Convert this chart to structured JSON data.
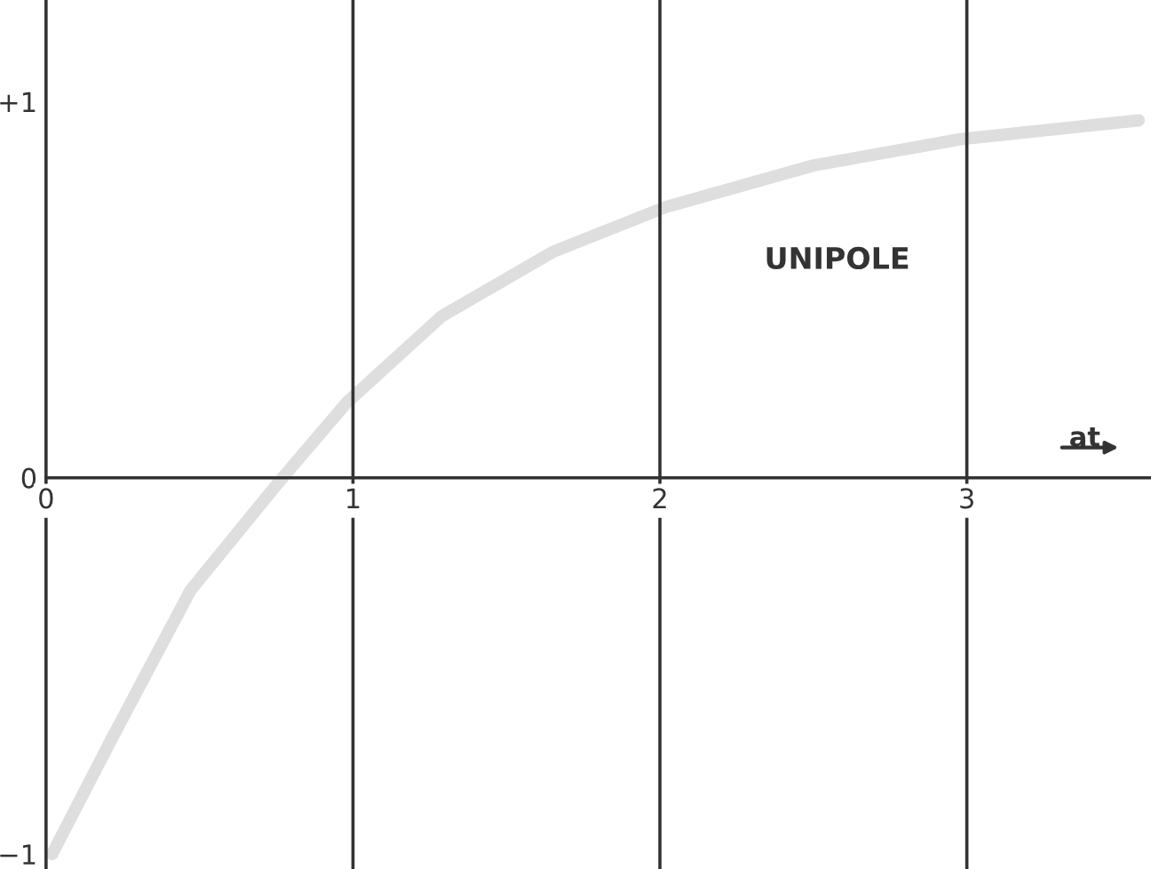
{
  "chart_data": {
    "type": "line",
    "xlabel": "at",
    "annotations": [
      "UNIPOLE"
    ],
    "x": [
      0.02,
      0.21,
      0.47,
      0.76,
      0.98,
      1.29,
      1.65,
      2.02,
      2.5,
      2.98,
      3.56
    ],
    "series": [
      {
        "color": "#dedede",
        "values": [
          -1.0,
          -0.7,
          -0.3,
          -0.01,
          0.2,
          0.43,
          0.6,
          0.72,
          0.83,
          0.9,
          0.95
        ]
      }
    ],
    "ref_lines": [
      {
        "axis": "x",
        "value": 1,
        "color": "#333333"
      },
      {
        "axis": "x",
        "value": 2,
        "color": "#333333"
      },
      {
        "axis": "x",
        "value": 3,
        "color": "#333333"
      }
    ],
    "xlim": [
      0,
      3.6
    ],
    "ylim": [
      -1.04,
      1.27
    ],
    "xticks": [
      0,
      1,
      2,
      3
    ],
    "yticks": [
      {
        "value": 1,
        "label": "+1"
      },
      0,
      {
        "value": -1,
        "label": "−1"
      }
    ],
    "grid": false,
    "legend": false,
    "marker": "none",
    "line_style": "solid"
  }
}
